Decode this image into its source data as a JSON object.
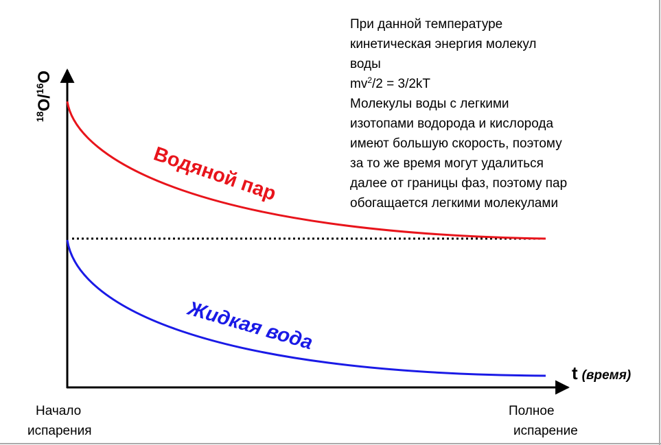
{
  "y_axis": {
    "label_parts": [
      "18",
      "O/",
      "16",
      "O"
    ]
  },
  "x_axis": {
    "symbol": "t",
    "unit": "(время)"
  },
  "curves": {
    "vapor": "Водяной пар",
    "liquid": "Жидкая вода"
  },
  "x_ends": {
    "start": [
      "Начало",
      "испарения"
    ],
    "end": [
      "Полное",
      "испарение"
    ]
  },
  "note": {
    "lines": [
      "При данной температуре",
      "кинетическая энергия молекул",
      "воды"
    ],
    "formula": [
      "mv",
      "2",
      "/2 = 3/2kT"
    ],
    "lines_after": [
      "Молекулы воды с легкими",
      "изотопами водорода и кислорода",
      "имеют большую скорость, поэтому",
      "за то же время могут удалиться",
      "далее от границы фаз, поэтому пар",
      "обогащается легкими молекулами"
    ]
  }
}
